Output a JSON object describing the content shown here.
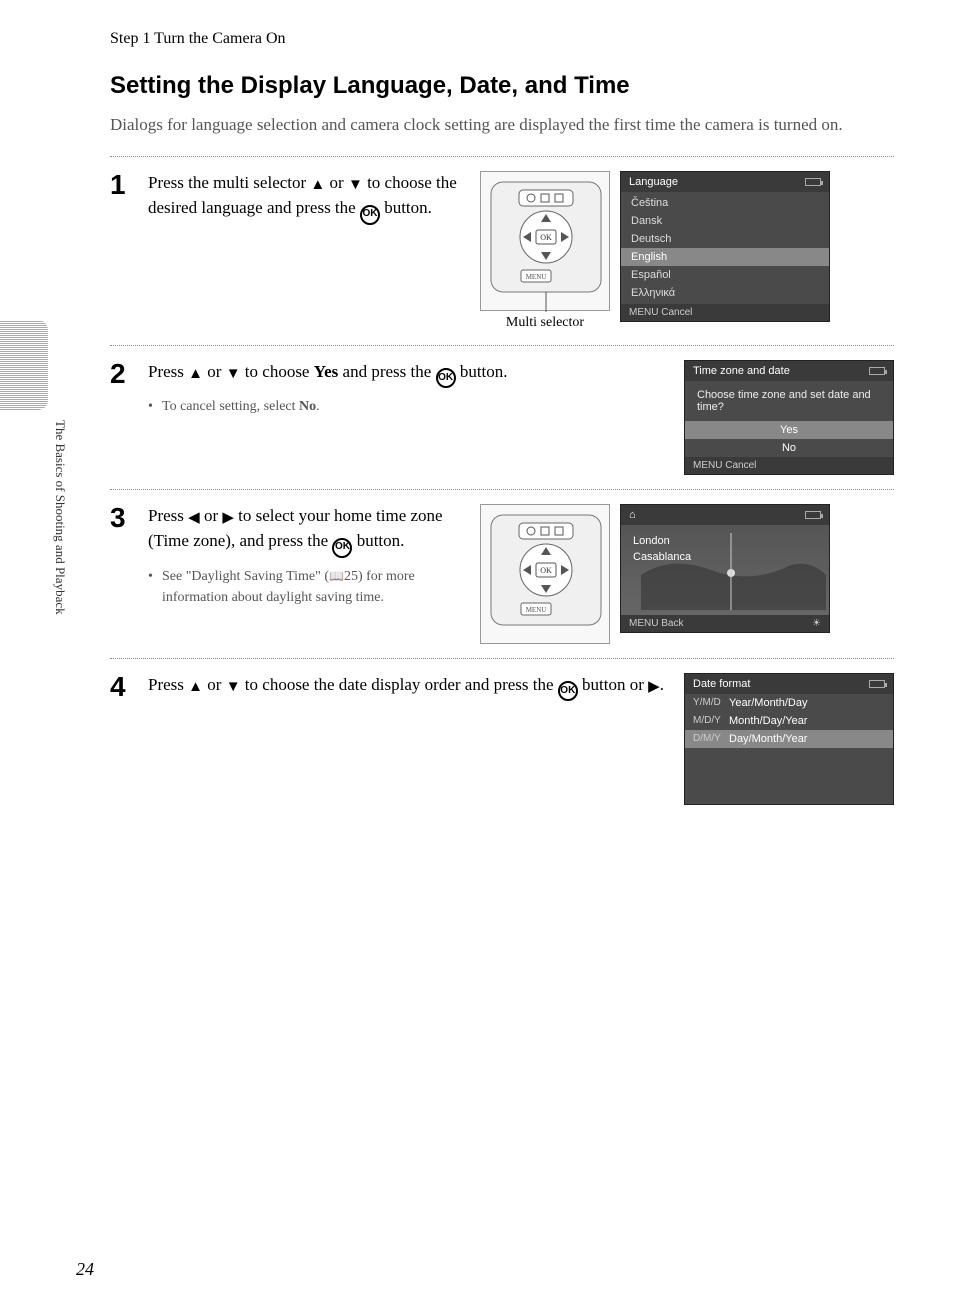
{
  "header": "Step 1 Turn the Camera On",
  "title": "Setting the Display Language, Date, and Time",
  "intro": "Dialogs for language selection and camera clock setting are displayed the first time the camera is turned on.",
  "sidebar_label": "The Basics of Shooting and Playback",
  "page_number": "24",
  "steps": {
    "s1": {
      "num": "1",
      "text_a": "Press the multi selector ",
      "text_b": " or ",
      "text_c": " to choose the desired language and press the ",
      "text_d": " button.",
      "caption": "Multi selector"
    },
    "s2": {
      "num": "2",
      "text_a": "Press ",
      "text_b": " or ",
      "text_c": " to choose ",
      "yes": "Yes",
      "text_d": " and press the ",
      "text_e": " button.",
      "bullet_a": "To cancel setting, select ",
      "no": "No",
      "bullet_b": "."
    },
    "s3": {
      "num": "3",
      "text_a": "Press ",
      "text_b": " or ",
      "text_c": " to select your home time zone (Time zone), and press the ",
      "text_d": " button.",
      "bullet_a": "See \"Daylight Saving Time\" (",
      "bullet_ref": "25",
      "bullet_b": ") for more information about daylight saving time."
    },
    "s4": {
      "num": "4",
      "text_a": "Press ",
      "text_b": " or ",
      "text_c": " to choose the date display order and press the ",
      "text_d": " button or ",
      "text_e": "."
    }
  },
  "screens": {
    "language": {
      "title": "Language",
      "items": [
        "Čeština",
        "Dansk",
        "Deutsch",
        "English",
        "Español",
        "Ελληνικά"
      ],
      "selected_index": 3,
      "footer_left": "Cancel"
    },
    "timezone_date": {
      "title": "Time zone and date",
      "message": "Choose time zone and set date and time?",
      "options": [
        "Yes",
        "No"
      ],
      "selected_index": 0,
      "footer_left": "Cancel"
    },
    "timezone_map": {
      "city1": "London",
      "city2": "Casablanca",
      "footer_left": "Back"
    },
    "date_format": {
      "title": "Date format",
      "rows": [
        {
          "prefix": "Y/M/D",
          "label": "Year/Month/Day"
        },
        {
          "prefix": "M/D/Y",
          "label": "Month/Day/Year"
        },
        {
          "prefix": "D/M/Y",
          "label": "Day/Month/Year"
        }
      ],
      "selected_index": 2
    }
  },
  "icons": {
    "up": "▲",
    "down": "▼",
    "left": "◀",
    "right": "▶",
    "ok": "OK",
    "menu_label": "MENU",
    "book": "📖",
    "home": "⌂"
  },
  "colors": {
    "screen_bg": "#4a4a4a",
    "screen_header": "#3a3a3a",
    "selected_bg": "#888888",
    "text": "#000000",
    "muted": "#555555"
  }
}
